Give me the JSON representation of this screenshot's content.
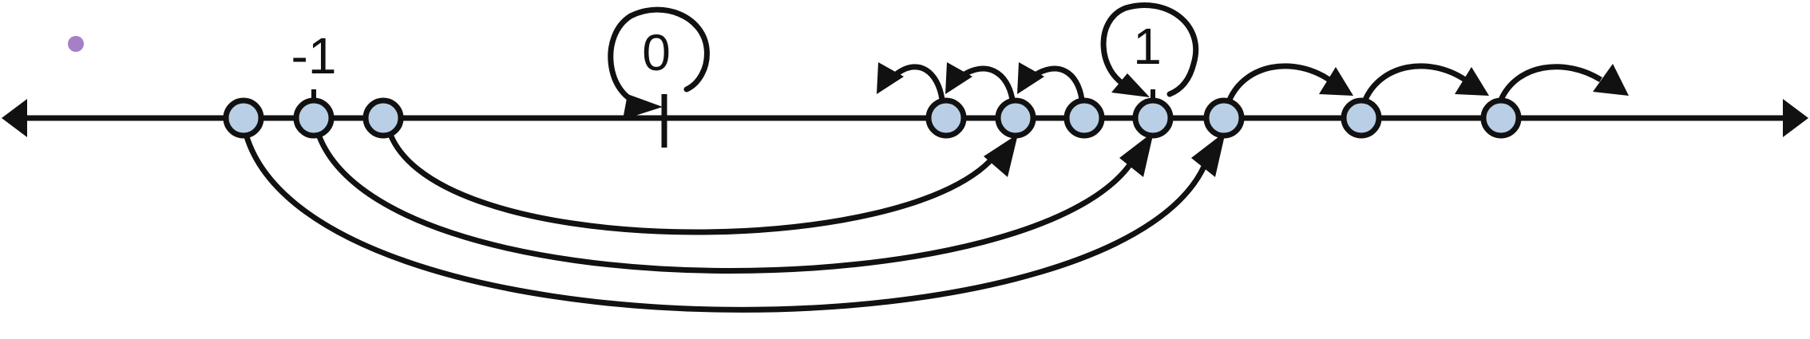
{
  "labels": {
    "neg_one": "-1",
    "zero": "0",
    "one": "1"
  },
  "colors": {
    "ink": "#111111",
    "point_fill": "#b9cfe6",
    "bullet": "#a77fc4"
  },
  "icons": {
    "bullet": "bullet-dot-icon",
    "arrowhead": "arrowhead-icon"
  }
}
